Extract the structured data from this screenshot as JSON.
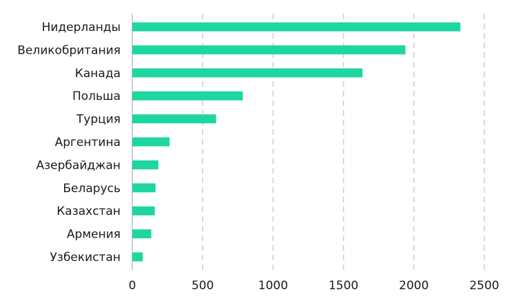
{
  "chart_data": {
    "type": "bar",
    "orientation": "horizontal",
    "title": "",
    "xlabel": "",
    "ylabel": "",
    "categories": [
      "Нидерланды",
      "Великобритания",
      "Канада",
      "Польша",
      "Турция",
      "Аргентина",
      "Азербайджан",
      "Беларусь",
      "Казахстан",
      "Армения",
      "Узбекистан"
    ],
    "values": [
      2330,
      1940,
      1635,
      785,
      595,
      265,
      185,
      165,
      160,
      135,
      75
    ],
    "xlim": [
      0,
      2500
    ],
    "xticks": [
      0,
      500,
      1000,
      1500,
      2000,
      2500
    ],
    "xtick_labels": [
      "0",
      "500",
      "1000",
      "1500",
      "2000",
      "2500"
    ],
    "grid": "vertical-dashed",
    "legend": "none",
    "bar_color": "#1dd6a0"
  }
}
